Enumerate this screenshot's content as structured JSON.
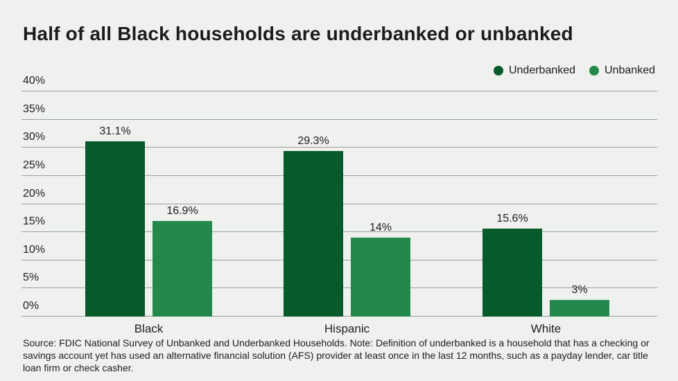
{
  "title": "Half of all Black households are underbanked or unbanked",
  "source_note": "Source: FDIC National Survey of Unbanked and Underbanked Households. Note: Definition of underbanked is a household that has a checking or savings account yet has used an alternative financial solution (AFS) provider at least once in the last 12 months, such as a payday lender, car title loan firm or check casher.",
  "colors": {
    "background": "#eff1ef",
    "underbanked": "#075a2a",
    "unbanked": "#22894b",
    "gridline": "#9a9e9a",
    "title_text": "#1c1c1a",
    "label_text": "#1d1d1b"
  },
  "chart_data": {
    "type": "bar",
    "title": "Half of all Black households are underbanked or unbanked",
    "categories": [
      "Black",
      "Hispanic",
      "White"
    ],
    "series": [
      {
        "name": "Underbanked",
        "key": "underbanked",
        "color": "#075a2a",
        "values": [
          31.1,
          29.3,
          15.6
        ],
        "value_labels": [
          "31.1%",
          "29.3%",
          "15.6%"
        ]
      },
      {
        "name": "Unbanked",
        "key": "unbanked",
        "color": "#22894b",
        "values": [
          16.9,
          14,
          3
        ],
        "value_labels": [
          "16.9%",
          "14%",
          "3%"
        ]
      }
    ],
    "xlabel": "",
    "ylabel": "",
    "ylim": [
      0,
      40
    ],
    "ytick_step": 5,
    "ytick_labels": [
      "0%",
      "5%",
      "10%",
      "15%",
      "20%",
      "25%",
      "30%",
      "35%",
      "40%"
    ],
    "grid": true,
    "legend_position": "top-right"
  }
}
